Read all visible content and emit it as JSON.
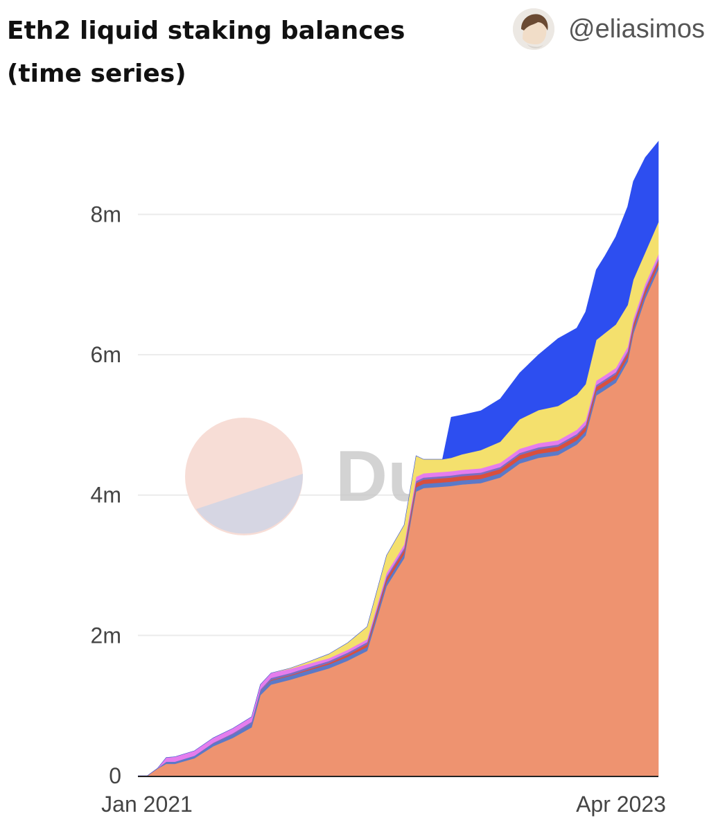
{
  "header": {
    "title": "Eth2 liquid staking balances (time series)",
    "author_handle": "@eliasimos",
    "avatar_icon": "user-avatar-icon"
  },
  "chart_data": {
    "type": "area",
    "stacked": true,
    "title": "Eth2 liquid staking balances (time series)",
    "xlabel": "",
    "ylabel": "",
    "x_tick_labels": [
      "Jan 2021",
      "Apr 2023"
    ],
    "y_tick_labels": [
      "0",
      "2m",
      "4m",
      "6m",
      "8m"
    ],
    "y_tick_values": [
      0,
      2000000,
      4000000,
      6000000,
      8000000
    ],
    "ylim": [
      0,
      9100000
    ],
    "xlim": [
      "2021-01-01",
      "2023-04-10"
    ],
    "grid": true,
    "legend": "none",
    "watermark": "Dune",
    "x": [
      "2021-01-01",
      "2021-01-16",
      "2021-02-01",
      "2021-02-15",
      "2021-03-01",
      "2021-04-01",
      "2021-05-01",
      "2021-06-01",
      "2021-07-01",
      "2021-07-15",
      "2021-08-01",
      "2021-09-01",
      "2021-10-01",
      "2021-11-01",
      "2021-12-01",
      "2022-01-01",
      "2022-02-01",
      "2022-03-01",
      "2022-03-20",
      "2022-04-01",
      "2022-05-01",
      "2022-05-15",
      "2022-06-01",
      "2022-07-01",
      "2022-08-01",
      "2022-09-01",
      "2022-10-01",
      "2022-11-01",
      "2022-12-01",
      "2022-12-15",
      "2023-01-01",
      "2023-01-15",
      "2023-02-01",
      "2023-02-20",
      "2023-03-01",
      "2023-03-20",
      "2023-04-10"
    ],
    "series": [
      {
        "color": "#ee9370",
        "values": [
          0,
          0,
          100000,
          170000,
          170000,
          250000,
          420000,
          540000,
          690000,
          1150000,
          1300000,
          1370000,
          1450000,
          1530000,
          1640000,
          1780000,
          2700000,
          3100000,
          4050000,
          4100000,
          4120000,
          4130000,
          4150000,
          4170000,
          4250000,
          4450000,
          4530000,
          4570000,
          4720000,
          4850000,
          5420000,
          5500000,
          5600000,
          5900000,
          6300000,
          6800000,
          7220000
        ]
      },
      {
        "color": "#5b79c8",
        "values": [
          0,
          0,
          5000,
          30000,
          30000,
          35000,
          40000,
          45000,
          50000,
          50000,
          55000,
          55000,
          55000,
          55000,
          55000,
          55000,
          60000,
          60000,
          60000,
          60000,
          60000,
          60000,
          60000,
          60000,
          60000,
          60000,
          60000,
          60000,
          60000,
          60000,
          60000,
          60000,
          60000,
          60000,
          60000,
          60000,
          60000
        ]
      },
      {
        "color": "#d94f3d",
        "values": [
          0,
          0,
          0,
          0,
          0,
          0,
          0,
          0,
          0,
          0,
          10000,
          10000,
          15000,
          20000,
          30000,
          40000,
          50000,
          55000,
          60000,
          60000,
          60000,
          60000,
          60000,
          60000,
          60000,
          60000,
          60000,
          60000,
          60000,
          60000,
          60000,
          60000,
          60000,
          60000,
          60000,
          60000,
          60000
        ]
      },
      {
        "color": "#7b6fc0",
        "values": [
          0,
          0,
          0,
          0,
          0,
          0,
          10000,
          20000,
          30000,
          30000,
          30000,
          30000,
          30000,
          30000,
          30000,
          30000,
          30000,
          30000,
          30000,
          30000,
          30000,
          30000,
          30000,
          30000,
          30000,
          30000,
          30000,
          30000,
          30000,
          30000,
          30000,
          30000,
          30000,
          30000,
          30000,
          30000,
          30000
        ]
      },
      {
        "color": "#e57ded",
        "values": [
          0,
          0,
          0,
          60000,
          70000,
          70000,
          70000,
          70000,
          70000,
          70000,
          70000,
          60000,
          50000,
          40000,
          40000,
          40000,
          50000,
          50000,
          60000,
          60000,
          60000,
          60000,
          60000,
          60000,
          60000,
          60000,
          60000,
          60000,
          60000,
          60000,
          60000,
          60000,
          60000,
          60000,
          60000,
          60000,
          60000
        ]
      },
      {
        "color": "#f4e06d",
        "values": [
          0,
          0,
          0,
          0,
          0,
          0,
          0,
          0,
          0,
          0,
          0,
          10000,
          30000,
          60000,
          100000,
          180000,
          250000,
          280000,
          300000,
          200000,
          180000,
          190000,
          220000,
          260000,
          300000,
          420000,
          470000,
          490000,
          500000,
          520000,
          580000,
          600000,
          620000,
          600000,
          560000,
          450000,
          460000
        ]
      },
      {
        "color": "#2d4ef0",
        "values": [
          0,
          0,
          0,
          0,
          0,
          0,
          0,
          0,
          0,
          0,
          0,
          0,
          0,
          0,
          0,
          0,
          0,
          0,
          0,
          0,
          0,
          580000,
          560000,
          560000,
          610000,
          660000,
          790000,
          960000,
          950000,
          1030000,
          1000000,
          1100000,
          1250000,
          1400000,
          1400000,
          1350000,
          1150000
        ]
      }
    ]
  }
}
